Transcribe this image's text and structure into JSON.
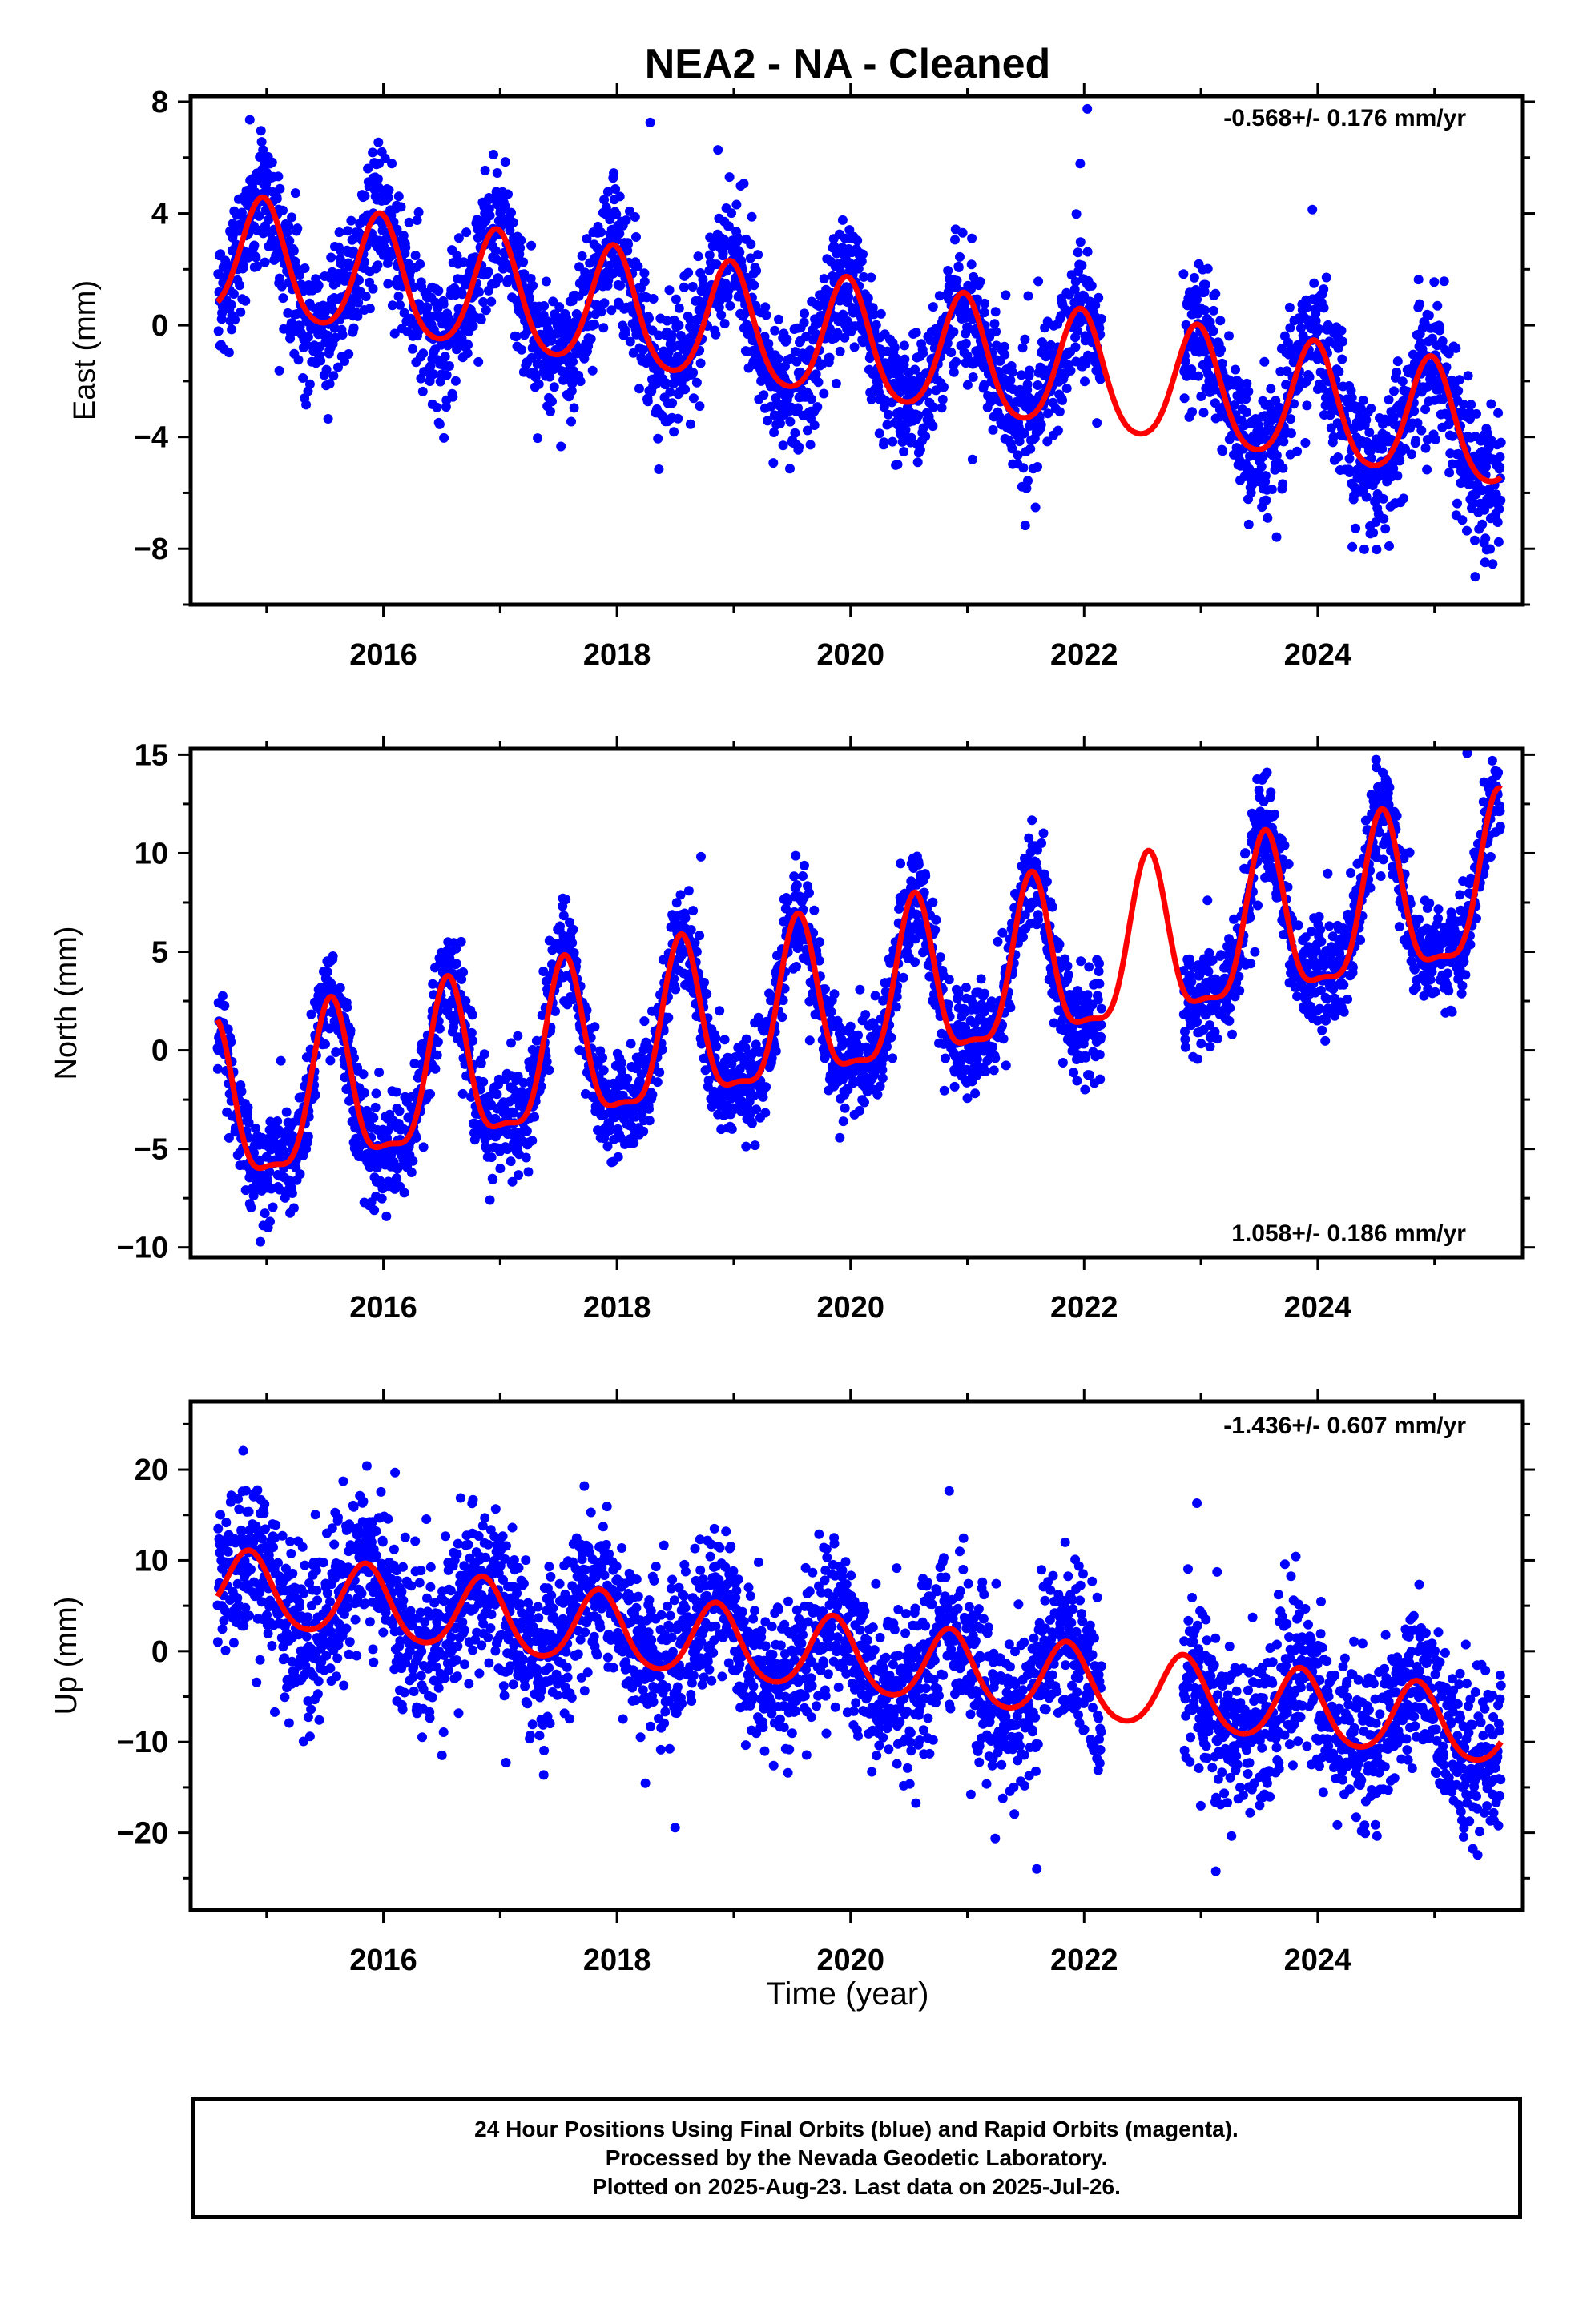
{
  "figure": {
    "title": "NEA2  - NA - Cleaned",
    "xlabel": "Time (year)",
    "colors": {
      "final_orbits": "#0000ff",
      "rapid_orbits": "#ff00ff",
      "model": "#ff0000"
    }
  },
  "note": {
    "lines": [
      "24 Hour Positions Using Final Orbits (blue) and Rapid Orbits (magenta).",
      "Processed by the Nevada Geodetic Laboratory.",
      "Plotted on 2025-Aug-23. Last data on 2025-Jul-26."
    ]
  },
  "chart_data": [
    {
      "type": "scatter",
      "component": "east",
      "ylabel": "East (mm)",
      "rate_label": "-0.568+/- 0.176 mm/yr",
      "xlim": [
        2014.35,
        2025.75
      ],
      "ylim": [
        -10,
        8.2
      ],
      "xticks": [
        2016,
        2018,
        2020,
        2022,
        2024
      ],
      "yticks": [
        -8,
        -4,
        0,
        4,
        8
      ],
      "tick_labels": [
        "−8",
        "−4",
        "0",
        "4",
        "8"
      ],
      "data_range": [
        2014.58,
        2025.57
      ],
      "gap": [
        2022.15,
        2022.85
      ],
      "model": {
        "intercept": 2.4,
        "trend": -0.568,
        "t0": 2014.58,
        "amp": 2.1,
        "phase_peak": 0.97,
        "semi_amp": 0.3
      },
      "noise_sd": 1.2,
      "axis_numbers_note": "tick labels as printed"
    },
    {
      "type": "scatter",
      "component": "north",
      "ylabel": "North (mm)",
      "rate_label": "1.058+/- 0.186 mm/yr",
      "xlim": [
        2014.35,
        2025.75
      ],
      "ylim": [
        -10.5,
        15.3
      ],
      "xticks": [
        2016,
        2018,
        2020,
        2022,
        2024
      ],
      "yticks": [
        -10,
        -5,
        0,
        5,
        10,
        15
      ],
      "tick_labels": [
        "−10",
        "−5",
        "0",
        "5",
        "10",
        "15"
      ],
      "data_range": [
        2014.58,
        2025.57
      ],
      "gap": [
        2022.15,
        2022.85
      ],
      "model": {
        "intercept": -3.5,
        "trend": 1.058,
        "t0": 2014.58,
        "amp": 4.0,
        "phase_peak": 0.55,
        "semi_amp": 1.2
      },
      "noise_sd": 1.3
    },
    {
      "type": "scatter",
      "component": "up",
      "ylabel": "Up (mm)",
      "rate_label": "-1.436+/- 0.607 mm/yr",
      "xlim": [
        2014.35,
        2025.75
      ],
      "ylim": [
        -28.5,
        27.5
      ],
      "xticks": [
        2016,
        2018,
        2020,
        2022,
        2024
      ],
      "yticks": [
        -20,
        -10,
        0,
        10,
        20
      ],
      "tick_labels": [
        "−20",
        "−10",
        "0",
        "10",
        "20"
      ],
      "data_range": [
        2014.58,
        2025.57
      ],
      "gap": [
        2022.15,
        2022.85
      ],
      "model": {
        "intercept": 7.0,
        "trend": -1.436,
        "t0": 2014.58,
        "amp": 4.0,
        "phase_peak": 0.85,
        "semi_amp": 0.5
      },
      "noise_sd": 4.5
    }
  ]
}
